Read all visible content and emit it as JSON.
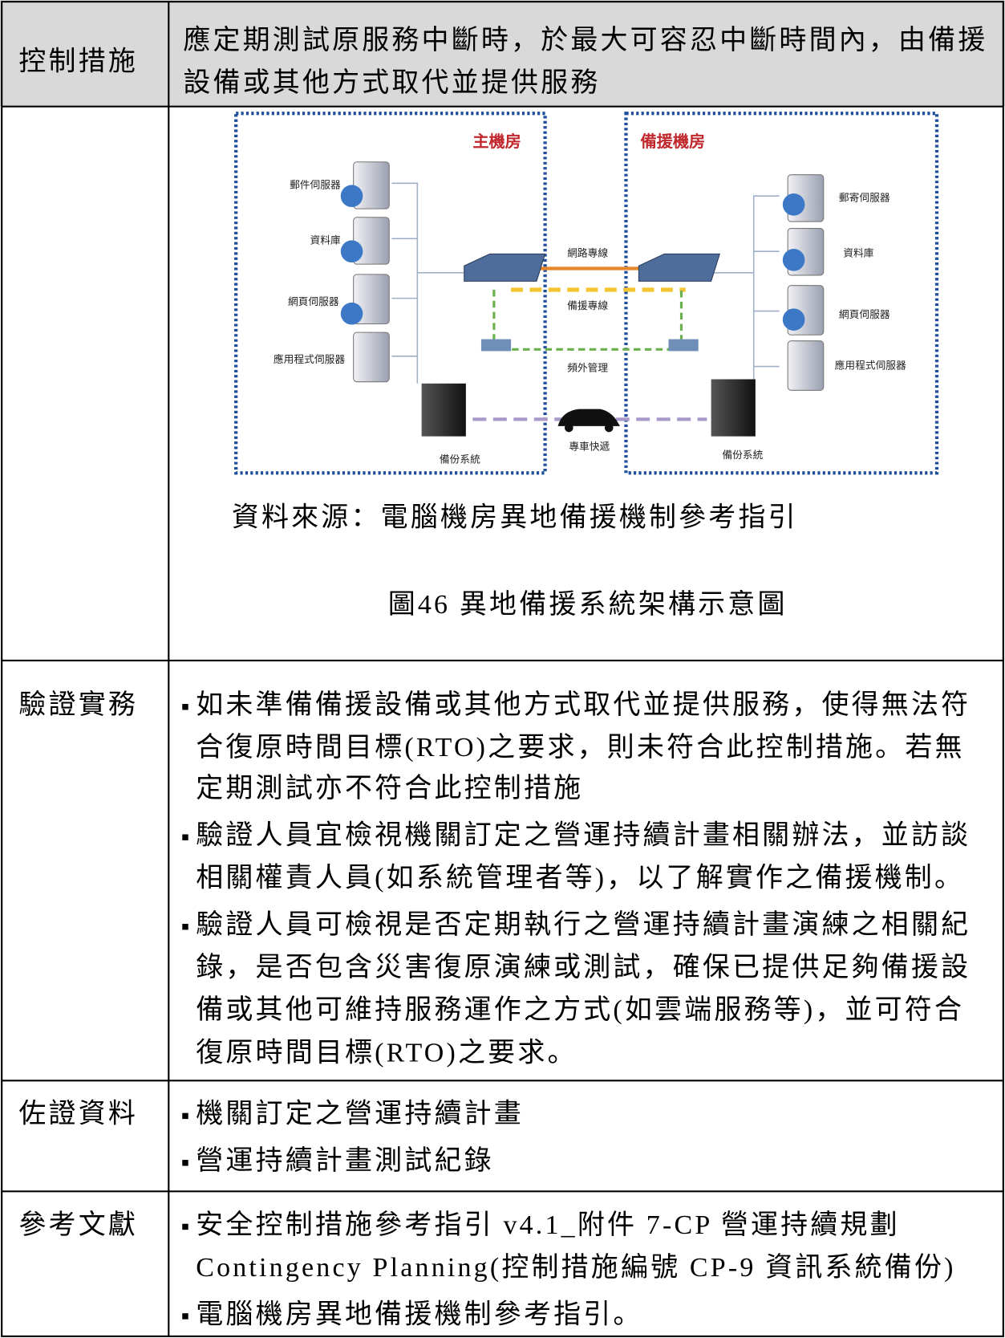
{
  "header": {
    "label": "控制措施",
    "text": [
      "應定期測試原服務中斷時，於最大可容忍中斷時間內，由備援",
      "設備或其他方式取代並提供服務"
    ]
  },
  "figure": {
    "diagram": {
      "main_site": "主機房",
      "backup_site": "備援機房",
      "left_servers": [
        "郵件伺服器",
        "資料庫",
        "網頁伺服器",
        "應用程式伺服器"
      ],
      "right_servers": [
        "郵寄伺服器",
        "資料庫",
        "網頁伺服器",
        "應用程式伺服器"
      ],
      "links": [
        "網路專線",
        "備援專線",
        "頻外管理",
        "專車快遞"
      ],
      "left_backup": "備份系統",
      "right_backup": "備份系統"
    },
    "source": "資料來源：電腦機房異地備援機制參考指引",
    "caption": "圖46 異地備援系統架構示意圖"
  },
  "rows": [
    {
      "label": "驗證實務",
      "items": [
        [
          "如未準備備援設備或其他方式取代並提供服務，使得無法符",
          "合復原時間目標(RTO)之要求，則未符合此控制措施。若無",
          "定期測試亦不符合此控制措施"
        ],
        [
          "驗證人員宜檢視機關訂定之營運持續計畫相關辦法，並訪談",
          "相關權責人員(如系統管理者等)，以了解實作之備援機制。"
        ],
        [
          "驗證人員可檢視是否定期執行之營運持續計畫演練之相關紀",
          "錄，是否包含災害復原演練或測試，確保已提供足夠備援設",
          "備或其他可維持服務運作之方式(如雲端服務等)，並可符合",
          "復原時間目標(RTO)之要求。"
        ]
      ]
    },
    {
      "label": "佐證資料",
      "items": [
        [
          "機關訂定之營運持續計畫"
        ],
        [
          "營運持續計畫測試紀錄"
        ]
      ]
    },
    {
      "label": "參考文獻",
      "items": [
        [
          "安全控制措施參考指引 v4.1_附件 7-CP 營運持續規劃",
          "Contingency Planning(控制措施編號 CP-9 資訊系統備份)"
        ],
        [
          "電腦機房異地備援機制參考指引。"
        ]
      ]
    }
  ]
}
